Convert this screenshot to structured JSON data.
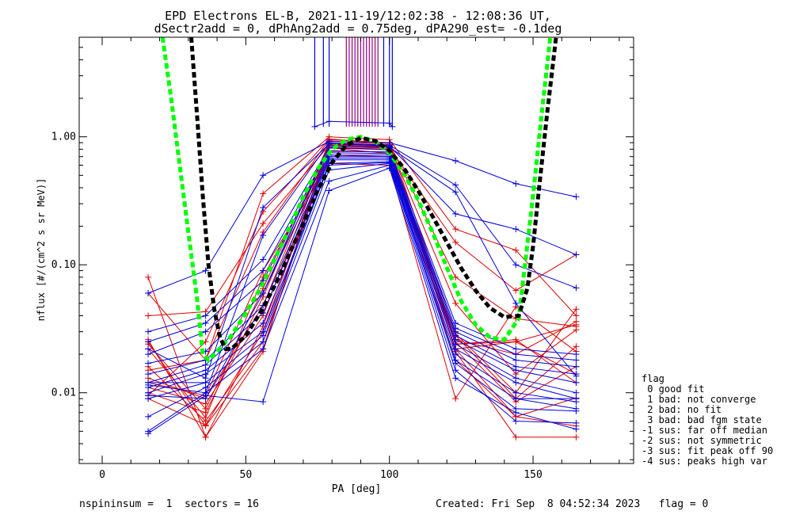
{
  "chart_data": {
    "type": "line",
    "title_line1": "EPD Electrons EL-B, 2021-11-19/12:02:38 - 12:08:36 UT,",
    "title_line2": "dSectr2add = 0, dPhAng2add = 0.75deg, dPA290_est=  -0.1deg",
    "xlabel": "PA [deg]",
    "ylabel": "nflux [#/(cm^2 s sr MeV)]",
    "xlim": [
      -8,
      185
    ],
    "ylim": [
      0.0028,
      6
    ],
    "yscale": "log",
    "xticks": [
      0,
      50,
      100,
      150
    ],
    "xtick_labels": [
      "0",
      "50",
      "100",
      "150"
    ],
    "yticks": [
      0.01,
      0.1,
      1.0
    ],
    "ytick_labels": [
      "0.01",
      "0.10",
      "1.00"
    ],
    "grid": false,
    "legend_position": "right",
    "legend_title": "flag",
    "legend": [
      " 0 good fit",
      " 1 bad: not converge",
      " 2 bad: no fit",
      " 3 bad: bad fgm state",
      "-1 sus: far off median",
      "-2 sus: not symmetric",
      "-3 sus: fit peak off 90",
      "-4 sus: peaks high var"
    ],
    "footer_left": "nspininsum =  1  sectors = 16",
    "footer_right": "Created: Fri Sep  8 04:52:34 2023   flag = 0",
    "pa_positions": [
      16,
      36,
      56,
      79,
      100,
      123,
      144,
      165
    ],
    "red_series": [
      [
        0.026,
        0.0045,
        0.021,
        0.93,
        0.87,
        0.021,
        0.0045,
        0.0045
      ],
      [
        0.025,
        0.0055,
        0.022,
        0.83,
        0.82,
        0.025,
        0.0085,
        0.016
      ],
      [
        0.016,
        0.006,
        0.025,
        0.77,
        0.76,
        0.018,
        0.0065,
        0.0091
      ],
      [
        0.009,
        0.0056,
        0.03,
        0.82,
        0.74,
        0.022,
        0.0065,
        0.0055
      ],
      [
        0.08,
        0.0045,
        0.033,
        0.82,
        0.79,
        0.022,
        0.025,
        0.014
      ],
      [
        0.011,
        0.0082,
        0.04,
        0.86,
        0.84,
        0.024,
        0.026,
        0.012
      ],
      [
        0.013,
        0.009,
        0.048,
        0.88,
        0.82,
        0.024,
        0.025,
        0.034
      ],
      [
        0.01,
        0.007,
        0.056,
        0.9,
        0.84,
        0.026,
        0.02,
        0.036
      ],
      [
        0.024,
        0.0075,
        0.065,
        0.88,
        0.86,
        0.05,
        0.014,
        0.031
      ],
      [
        0.06,
        0.018,
        0.18,
        0.95,
        0.9,
        0.029,
        0.01,
        0.045
      ],
      [
        0.022,
        0.0064,
        0.08,
        0.72,
        0.7,
        0.028,
        0.009,
        0.023
      ],
      [
        0.04,
        0.043,
        0.21,
        0.86,
        0.82,
        0.15,
        0.063,
        0.12
      ],
      [
        0.015,
        0.018,
        0.36,
        1.0,
        0.95,
        0.19,
        0.13,
        0.04
      ],
      [
        0.0095,
        0.025,
        0.26,
        0.96,
        0.89,
        0.08,
        0.038,
        0.033
      ],
      [
        0.012,
        0.0095,
        0.09,
        0.62,
        0.6,
        0.009,
        0.047,
        0.021
      ]
    ],
    "blue_series": [
      [
        0.0048,
        0.0095,
        0.0085,
        0.38,
        0.57,
        0.013,
        0.007,
        0.0052
      ],
      [
        0.005,
        0.01,
        0.022,
        0.45,
        0.6,
        0.015,
        0.006,
        0.0058
      ],
      [
        0.0065,
        0.011,
        0.025,
        0.55,
        0.62,
        0.017,
        0.0075,
        0.0072
      ],
      [
        0.009,
        0.012,
        0.028,
        0.6,
        0.63,
        0.018,
        0.009,
        0.0075
      ],
      [
        0.01,
        0.014,
        0.03,
        0.62,
        0.64,
        0.02,
        0.01,
        0.0085
      ],
      [
        0.011,
        0.015,
        0.035,
        0.66,
        0.66,
        0.022,
        0.012,
        0.009
      ],
      [
        0.012,
        0.0165,
        0.042,
        0.68,
        0.68,
        0.024,
        0.013,
        0.01
      ],
      [
        0.014,
        0.018,
        0.048,
        0.7,
        0.7,
        0.026,
        0.015,
        0.012
      ],
      [
        0.017,
        0.021,
        0.06,
        0.72,
        0.72,
        0.028,
        0.016,
        0.014
      ],
      [
        0.02,
        0.03,
        0.075,
        0.75,
        0.74,
        0.03,
        0.018,
        0.016
      ],
      [
        0.025,
        0.035,
        0.09,
        0.78,
        0.76,
        0.032,
        0.02,
        0.018
      ],
      [
        0.03,
        0.04,
        0.11,
        0.82,
        0.8,
        0.035,
        0.022,
        0.02
      ],
      [
        0.06,
        0.09,
        0.5,
        0.92,
        0.9,
        0.65,
        0.43,
        0.34
      ],
      [
        0.022,
        0.013,
        0.28,
        0.88,
        0.85,
        0.25,
        0.19,
        0.12
      ],
      [
        0.0115,
        0.01,
        0.17,
        0.9,
        0.86,
        0.42,
        0.1,
        0.066
      ],
      [
        0.0095,
        0.009,
        0.06,
        0.85,
        0.83,
        0.37,
        0.05,
        0.0135
      ]
    ],
    "extra_blue_segments": [
      {
        "x": [
          74,
          79,
          100,
          101
        ],
        "y": [
          1.2,
          1.32,
          1.28,
          1.2
        ]
      },
      {
        "x": [
          16,
          36
        ],
        "y": [
          0.012,
          0.012
        ]
      },
      {
        "x": [
          144,
          165
        ],
        "y": [
          0.009,
          0.009
        ]
      }
    ],
    "vertical_marks_x": [
      74,
      77,
      79,
      85,
      86,
      87,
      88,
      89,
      90,
      91,
      92,
      93,
      94,
      95,
      96,
      98,
      100,
      101
    ],
    "fits": [
      {
        "color": "#00ff00",
        "x": [
          21,
          24,
          27,
          30,
          33,
          35,
          37,
          40,
          45,
          50,
          55,
          60,
          65,
          70,
          75,
          80,
          85,
          90,
          95,
          100,
          105,
          110,
          115,
          120,
          125,
          130,
          135,
          140,
          145,
          150,
          153,
          156
        ],
        "y": [
          6,
          2.0,
          0.6,
          0.18,
          0.055,
          0.02,
          0.018,
          0.021,
          0.028,
          0.042,
          0.065,
          0.11,
          0.19,
          0.34,
          0.56,
          0.8,
          0.95,
          1.0,
          0.92,
          0.75,
          0.52,
          0.32,
          0.18,
          0.095,
          0.052,
          0.034,
          0.027,
          0.026,
          0.038,
          0.35,
          1.5,
          6
        ]
      },
      {
        "color": "#000000",
        "x": [
          31,
          33,
          35,
          37,
          39,
          41,
          43,
          45,
          50,
          55,
          60,
          65,
          70,
          75,
          80,
          85,
          90,
          95,
          100,
          105,
          110,
          115,
          120,
          125,
          130,
          135,
          140,
          145,
          148,
          150,
          152,
          155,
          158
        ],
        "y": [
          6,
          1.5,
          0.35,
          0.1,
          0.045,
          0.027,
          0.022,
          0.022,
          0.028,
          0.042,
          0.068,
          0.12,
          0.21,
          0.38,
          0.63,
          0.86,
          0.98,
          0.93,
          0.78,
          0.57,
          0.38,
          0.24,
          0.15,
          0.094,
          0.063,
          0.046,
          0.039,
          0.04,
          0.065,
          0.14,
          0.38,
          1.6,
          6
        ]
      }
    ]
  }
}
